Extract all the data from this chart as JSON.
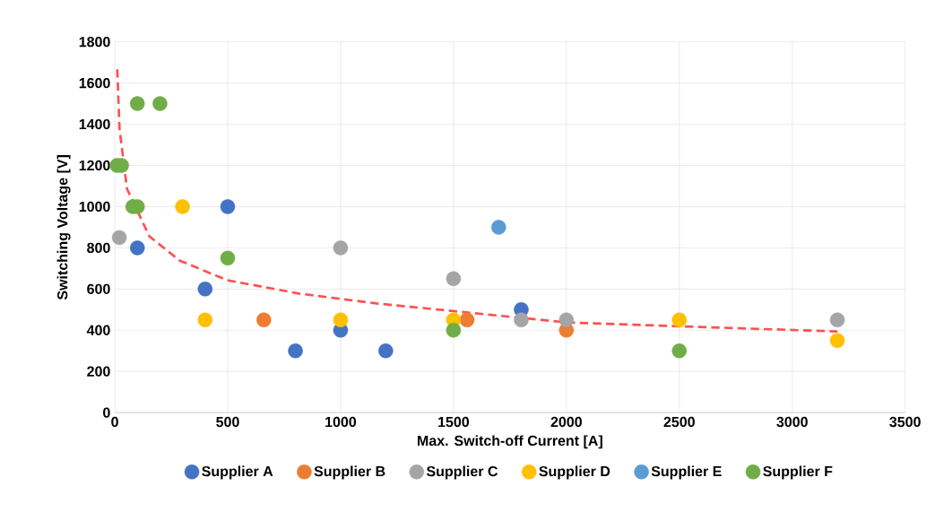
{
  "chart_data": {
    "type": "scatter",
    "xlabel": "Max. Switch-off Current [A]",
    "ylabel": "Switching Voltage [V]",
    "xlim": [
      0,
      3500
    ],
    "ylim": [
      0,
      1800
    ],
    "xticks": [
      0,
      500,
      1000,
      1500,
      2000,
      2500,
      3000,
      3500
    ],
    "yticks": [
      0,
      200,
      400,
      600,
      800,
      1000,
      1200,
      1400,
      1600,
      1800
    ],
    "grid": true,
    "legend": "bottom",
    "marker": "circle",
    "series": [
      {
        "name": "Supplier A",
        "color": "#4472c4",
        "x": [
          100,
          400,
          500,
          800,
          1000,
          1200,
          1800
        ],
        "values": [
          800,
          600,
          1000,
          300,
          400,
          300,
          500
        ]
      },
      {
        "name": "Supplier B",
        "color": "#ed7d31",
        "x": [
          660,
          1560,
          2000
        ],
        "values": [
          450,
          450,
          400
        ]
      },
      {
        "name": "Supplier C",
        "color": "#a5a5a5",
        "x": [
          20,
          1000,
          1500,
          1800,
          2000,
          3200
        ],
        "values": [
          850,
          800,
          650,
          450,
          450,
          450
        ]
      },
      {
        "name": "Supplier D",
        "color": "#ffc000",
        "x": [
          300,
          400,
          1000,
          1500,
          2500,
          3200
        ],
        "values": [
          1000,
          450,
          450,
          450,
          450,
          350
        ]
      },
      {
        "name": "Supplier E",
        "color": "#5b9bd5",
        "x": [
          1700
        ],
        "values": [
          900
        ]
      },
      {
        "name": "Supplier F",
        "color": "#70ad47",
        "x": [
          10,
          30,
          80,
          100,
          100,
          200,
          500,
          1500,
          2500
        ],
        "values": [
          1200,
          1200,
          1000,
          1000,
          1500,
          1500,
          750,
          400,
          300
        ]
      },
      {
        "type": "line",
        "color": "#ff5050",
        "line_style": "dashed",
        "marker": "none",
        "x": [
          11,
          21,
          54,
          153,
          286,
          497,
          815,
          1159,
          2000,
          2500,
          3200
        ],
        "values": [
          1667,
          1377,
          1087,
          856,
          739,
          643,
          578,
          530,
          438,
          419,
          394
        ]
      }
    ]
  }
}
